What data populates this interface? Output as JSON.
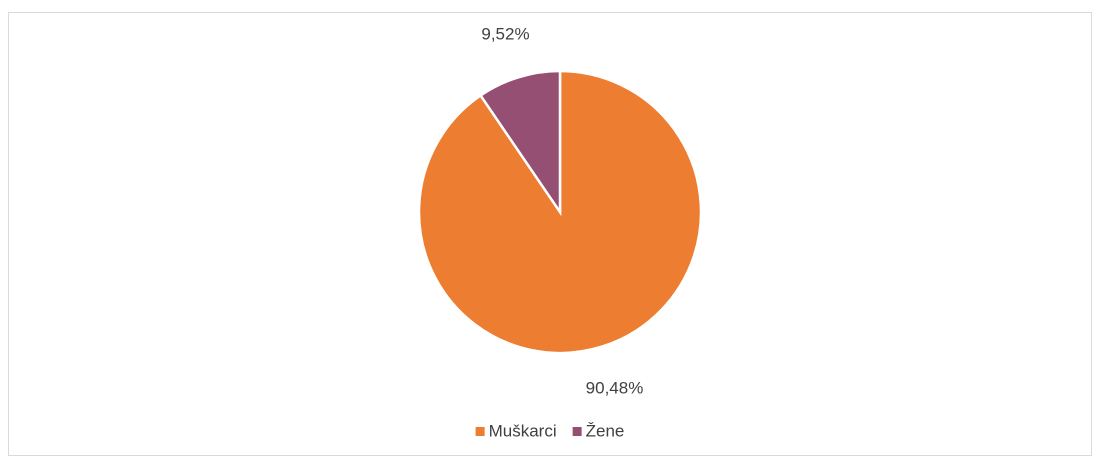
{
  "chart_data": {
    "type": "pie",
    "categories": [
      "Muškarci",
      "Žene"
    ],
    "values": [
      90.48,
      9.52
    ],
    "value_labels": [
      "90,48%",
      "9,52%"
    ],
    "colors": [
      "#ED7D31",
      "#954F72"
    ],
    "legend": "bottom"
  }
}
